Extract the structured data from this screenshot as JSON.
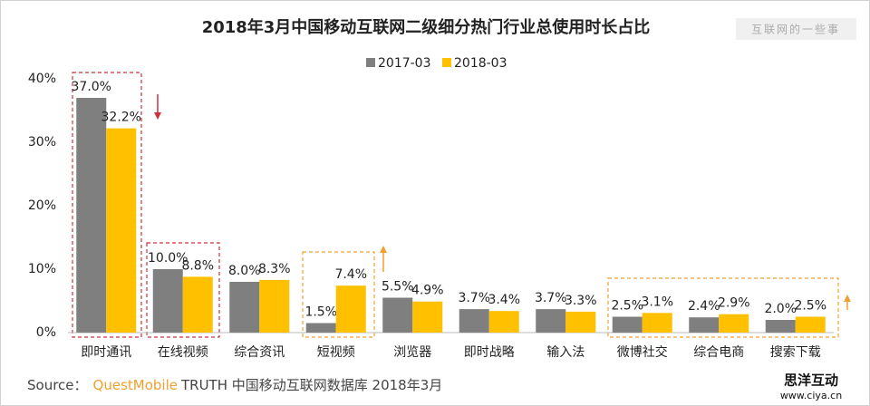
{
  "chart_data": {
    "type": "bar",
    "title": "2018年3月中国移动互联网二级细分热门行业总使用时长占比",
    "categories": [
      "即时通讯",
      "在线视频",
      "综合资讯",
      "短视频",
      "浏览器",
      "即时战略",
      "输入法",
      "微博社交",
      "综合电商",
      "搜索下载"
    ],
    "series": [
      {
        "name": "2017-03",
        "color": "#7f7f7f",
        "values": [
          37.0,
          10.0,
          8.0,
          1.5,
          5.5,
          3.7,
          3.7,
          2.5,
          2.4,
          2.0
        ],
        "value_labels": [
          "37.0%",
          "10.0%",
          "8.0%",
          "1.5%",
          "5.5%",
          "3.7%",
          "3.7%",
          "2.5%",
          "2.4%",
          "2.0%"
        ]
      },
      {
        "name": "2018-03",
        "color": "#ffc000",
        "values": [
          32.2,
          8.8,
          8.3,
          7.4,
          4.9,
          3.4,
          3.3,
          3.1,
          2.9,
          2.5
        ],
        "value_labels": [
          "32.2%",
          "8.8%",
          "8.3%",
          "7.4%",
          "4.9%",
          "3.4%",
          "3.3%",
          "3.1%",
          "2.9%",
          "2.5%"
        ]
      }
    ],
    "ylim": [
      0,
      40
    ],
    "yticks": [
      {
        "value": 0,
        "label": "0%"
      },
      {
        "value": 10,
        "label": "10%"
      },
      {
        "value": 20,
        "label": "20%"
      },
      {
        "value": 30,
        "label": "30%"
      },
      {
        "value": 40,
        "label": "40%"
      }
    ],
    "grid": false,
    "legend": "top"
  },
  "watermark": "互联网的一些事",
  "source": {
    "label": "Source：",
    "brand": "QuestMobile",
    "text": "TRUTH 中国移动互联网数据库 2018年3月"
  },
  "logo": {
    "name": "思洋互动",
    "url": "www.ciya.cn"
  }
}
